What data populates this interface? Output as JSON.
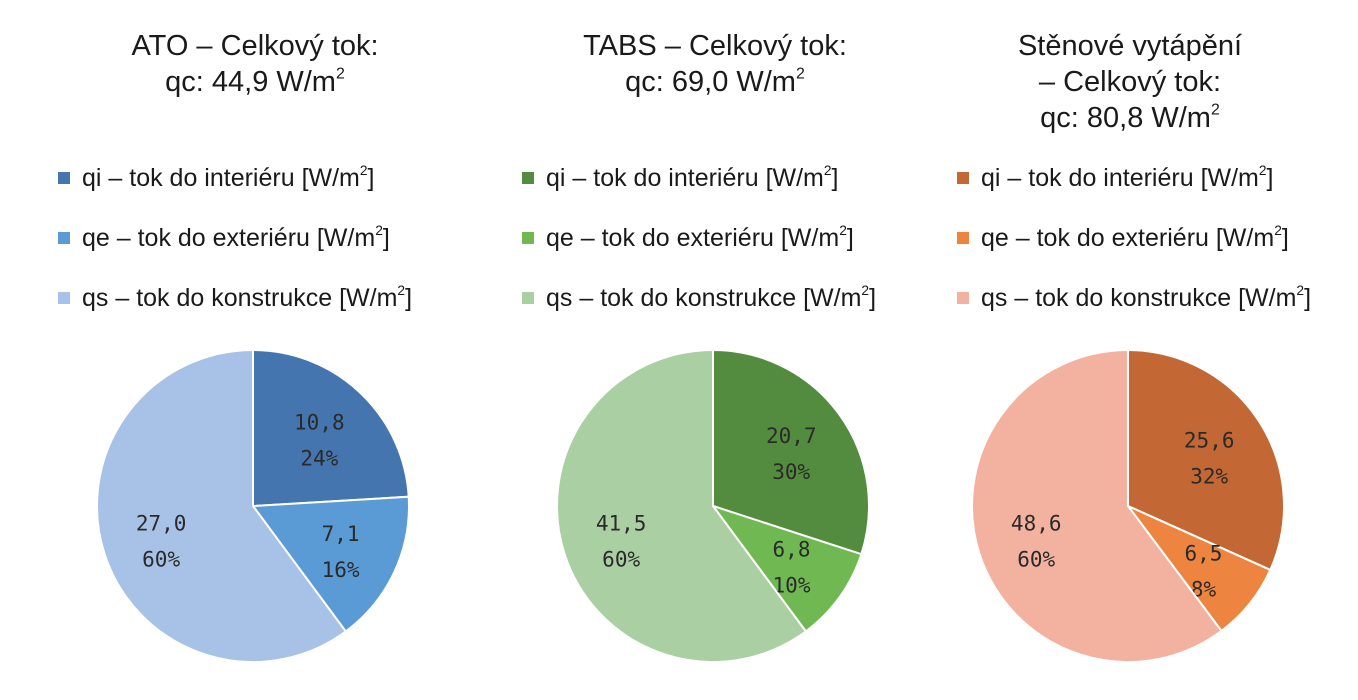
{
  "chart_data": [
    {
      "type": "pie",
      "title_lines": [
        "ATO – Celkový tok:",
        "qc: 44,9 W/m²"
      ],
      "legend": [
        "qi – tok do interiéru [W/m²]",
        "qe – tok do exteriéru [W/m²]",
        "qs – tok do konstrukce [W/m²]"
      ],
      "values": [
        10.8,
        7.1,
        27.0
      ],
      "value_labels": [
        "10,8",
        "7,1",
        "27,0"
      ],
      "percent_labels": [
        "24%",
        "16%",
        "60%"
      ],
      "colors": [
        "#4475ae",
        "#5b9bd5",
        "#a7c2e6"
      ]
    },
    {
      "type": "pie",
      "title_lines": [
        "TABS – Celkový tok:",
        "qc: 69,0 W/m²"
      ],
      "legend": [
        "qi – tok do interiéru [W/m²]",
        "qe – tok do exteriéru [W/m²]",
        "qs – tok do konstrukce [W/m²]"
      ],
      "values": [
        20.7,
        6.8,
        41.5
      ],
      "value_labels": [
        "20,7",
        "6,8",
        "41,5"
      ],
      "percent_labels": [
        "30%",
        "10%",
        "60%"
      ],
      "colors": [
        "#548c3f",
        "#70b952",
        "#a9cfa2"
      ]
    },
    {
      "type": "pie",
      "title_lines": [
        "Stěnové vytápění",
        "– Celkový tok:",
        "qc: 80,8 W/m²"
      ],
      "legend": [
        "qi – tok do interiéru [W/m²]",
        "qe – tok do exteriéru [W/m²]",
        "qs – tok do konstrukce [W/m²]"
      ],
      "values": [
        25.6,
        6.5,
        48.6
      ],
      "value_labels": [
        "25,6",
        "6,5",
        "48,6"
      ],
      "percent_labels": [
        "32%",
        "8%",
        "60%"
      ],
      "colors": [
        "#c36834",
        "#ed8540",
        "#f3b1a0"
      ]
    }
  ]
}
